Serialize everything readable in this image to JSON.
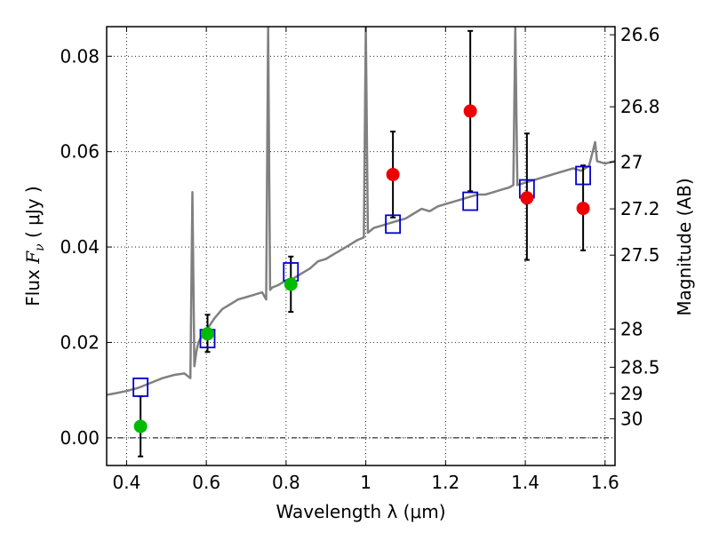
{
  "chart_data": {
    "type": "scatter",
    "xlabel": "Wavelength  λ (μm)",
    "ylabel_prefix": "Flux  ",
    "ylabel_symbol": "F",
    "ylabel_subscript": "ν",
    "ylabel_suffix": "  ( μJy )",
    "y2label": "Magnitude (AB)",
    "xlim": [
      0.35,
      1.625
    ],
    "ylim": [
      -0.0058,
      0.0862
    ],
    "grid": true,
    "grid_style": "dotted",
    "x_ticks": [
      {
        "value": 0.4,
        "label": "0.4"
      },
      {
        "value": 0.6,
        "label": "0.6"
      },
      {
        "value": 0.8,
        "label": "0.8"
      },
      {
        "value": 1.0,
        "label": "1"
      },
      {
        "value": 1.2,
        "label": "1.2"
      },
      {
        "value": 1.4,
        "label": "1.4"
      },
      {
        "value": 1.6,
        "label": "1.6"
      }
    ],
    "y_ticks": [
      {
        "value": 0.0,
        "label": "0.00"
      },
      {
        "value": 0.02,
        "label": "0.02"
      },
      {
        "value": 0.04,
        "label": "0.04"
      },
      {
        "value": 0.06,
        "label": "0.06"
      },
      {
        "value": 0.08,
        "label": "0.08"
      }
    ],
    "y2_ticks": [
      {
        "flux": 0.0845,
        "label": "26.6"
      },
      {
        "flux": 0.0694,
        "label": "26.8"
      },
      {
        "flux": 0.0578,
        "label": "27"
      },
      {
        "flux": 0.048,
        "label": "27.2"
      },
      {
        "flux": 0.0383,
        "label": "27.5"
      },
      {
        "flux": 0.0228,
        "label": "28"
      },
      {
        "flux": 0.0148,
        "label": "28.5"
      },
      {
        "flux": 0.0093,
        "label": "29"
      },
      {
        "flux": 0.004,
        "label": "30"
      }
    ],
    "zero_line": 0.0,
    "colors": {
      "template": "#808080",
      "model_flux": "#0000cc",
      "detection": "#00bb00",
      "non_detection": "#ee0000",
      "errorbar": "#000000",
      "zero_line": "#000000"
    },
    "series": [
      {
        "name": "SED template",
        "kind": "line",
        "x": [
          0.35,
          0.37,
          0.4,
          0.43,
          0.46,
          0.49,
          0.52,
          0.545,
          0.56,
          0.565,
          0.57,
          0.575,
          0.58,
          0.59,
          0.6,
          0.62,
          0.64,
          0.66,
          0.68,
          0.7,
          0.72,
          0.74,
          0.75,
          0.755,
          0.76,
          0.765,
          0.78,
          0.8,
          0.82,
          0.84,
          0.86,
          0.88,
          0.9,
          0.92,
          0.94,
          0.96,
          0.98,
          0.995,
          1.0,
          1.005,
          1.02,
          1.04,
          1.06,
          1.08,
          1.1,
          1.12,
          1.14,
          1.16,
          1.18,
          1.2,
          1.22,
          1.24,
          1.26,
          1.28,
          1.3,
          1.32,
          1.34,
          1.36,
          1.37,
          1.375,
          1.38,
          1.4,
          1.42,
          1.44,
          1.46,
          1.48,
          1.5,
          1.52,
          1.54,
          1.56,
          1.575,
          1.58,
          1.6,
          1.625
        ],
        "y": [
          0.009,
          0.0093,
          0.0098,
          0.0105,
          0.0115,
          0.0125,
          0.0132,
          0.0135,
          0.0125,
          0.0515,
          0.015,
          0.018,
          0.02,
          0.0215,
          0.0225,
          0.025,
          0.027,
          0.028,
          0.029,
          0.0295,
          0.03,
          0.0305,
          0.029,
          0.0862,
          0.031,
          0.0315,
          0.032,
          0.033,
          0.0335,
          0.0345,
          0.0355,
          0.037,
          0.0375,
          0.0385,
          0.0395,
          0.0405,
          0.0415,
          0.042,
          0.0862,
          0.043,
          0.044,
          0.0445,
          0.045,
          0.0455,
          0.046,
          0.047,
          0.048,
          0.0475,
          0.0485,
          0.049,
          0.0495,
          0.05,
          0.0505,
          0.051,
          0.051,
          0.0515,
          0.052,
          0.0525,
          0.053,
          0.0862,
          0.053,
          0.0535,
          0.054,
          0.0545,
          0.055,
          0.0555,
          0.056,
          0.0565,
          0.056,
          0.057,
          0.062,
          0.058,
          0.0575,
          0.058
        ]
      },
      {
        "name": "Model flux",
        "kind": "marker",
        "marker": "square-open",
        "x": [
          0.435,
          0.603,
          0.812,
          1.068,
          1.262,
          1.404,
          1.545
        ],
        "y": [
          0.0106,
          0.0208,
          0.0348,
          0.0448,
          0.0496,
          0.0522,
          0.055
        ]
      },
      {
        "name": "Detections",
        "kind": "marker",
        "marker": "circle-filled",
        "x": [
          0.435,
          0.603,
          0.812
        ],
        "y": [
          0.0024,
          0.0218,
          0.0322
        ],
        "err_low": [
          0.0063,
          0.0038,
          0.0058
        ],
        "err_high": [
          0.0063,
          0.004,
          0.0058
        ]
      },
      {
        "name": "Non-detections",
        "kind": "marker",
        "marker": "circle-filled",
        "x": [
          1.068,
          1.262,
          1.404,
          1.545
        ],
        "y": [
          0.0552,
          0.0685,
          0.0503,
          0.0481
        ],
        "err_low": [
          0.009,
          0.0168,
          0.013,
          0.0088
        ],
        "err_high": [
          0.009,
          0.0168,
          0.0135,
          0.009
        ]
      }
    ]
  }
}
